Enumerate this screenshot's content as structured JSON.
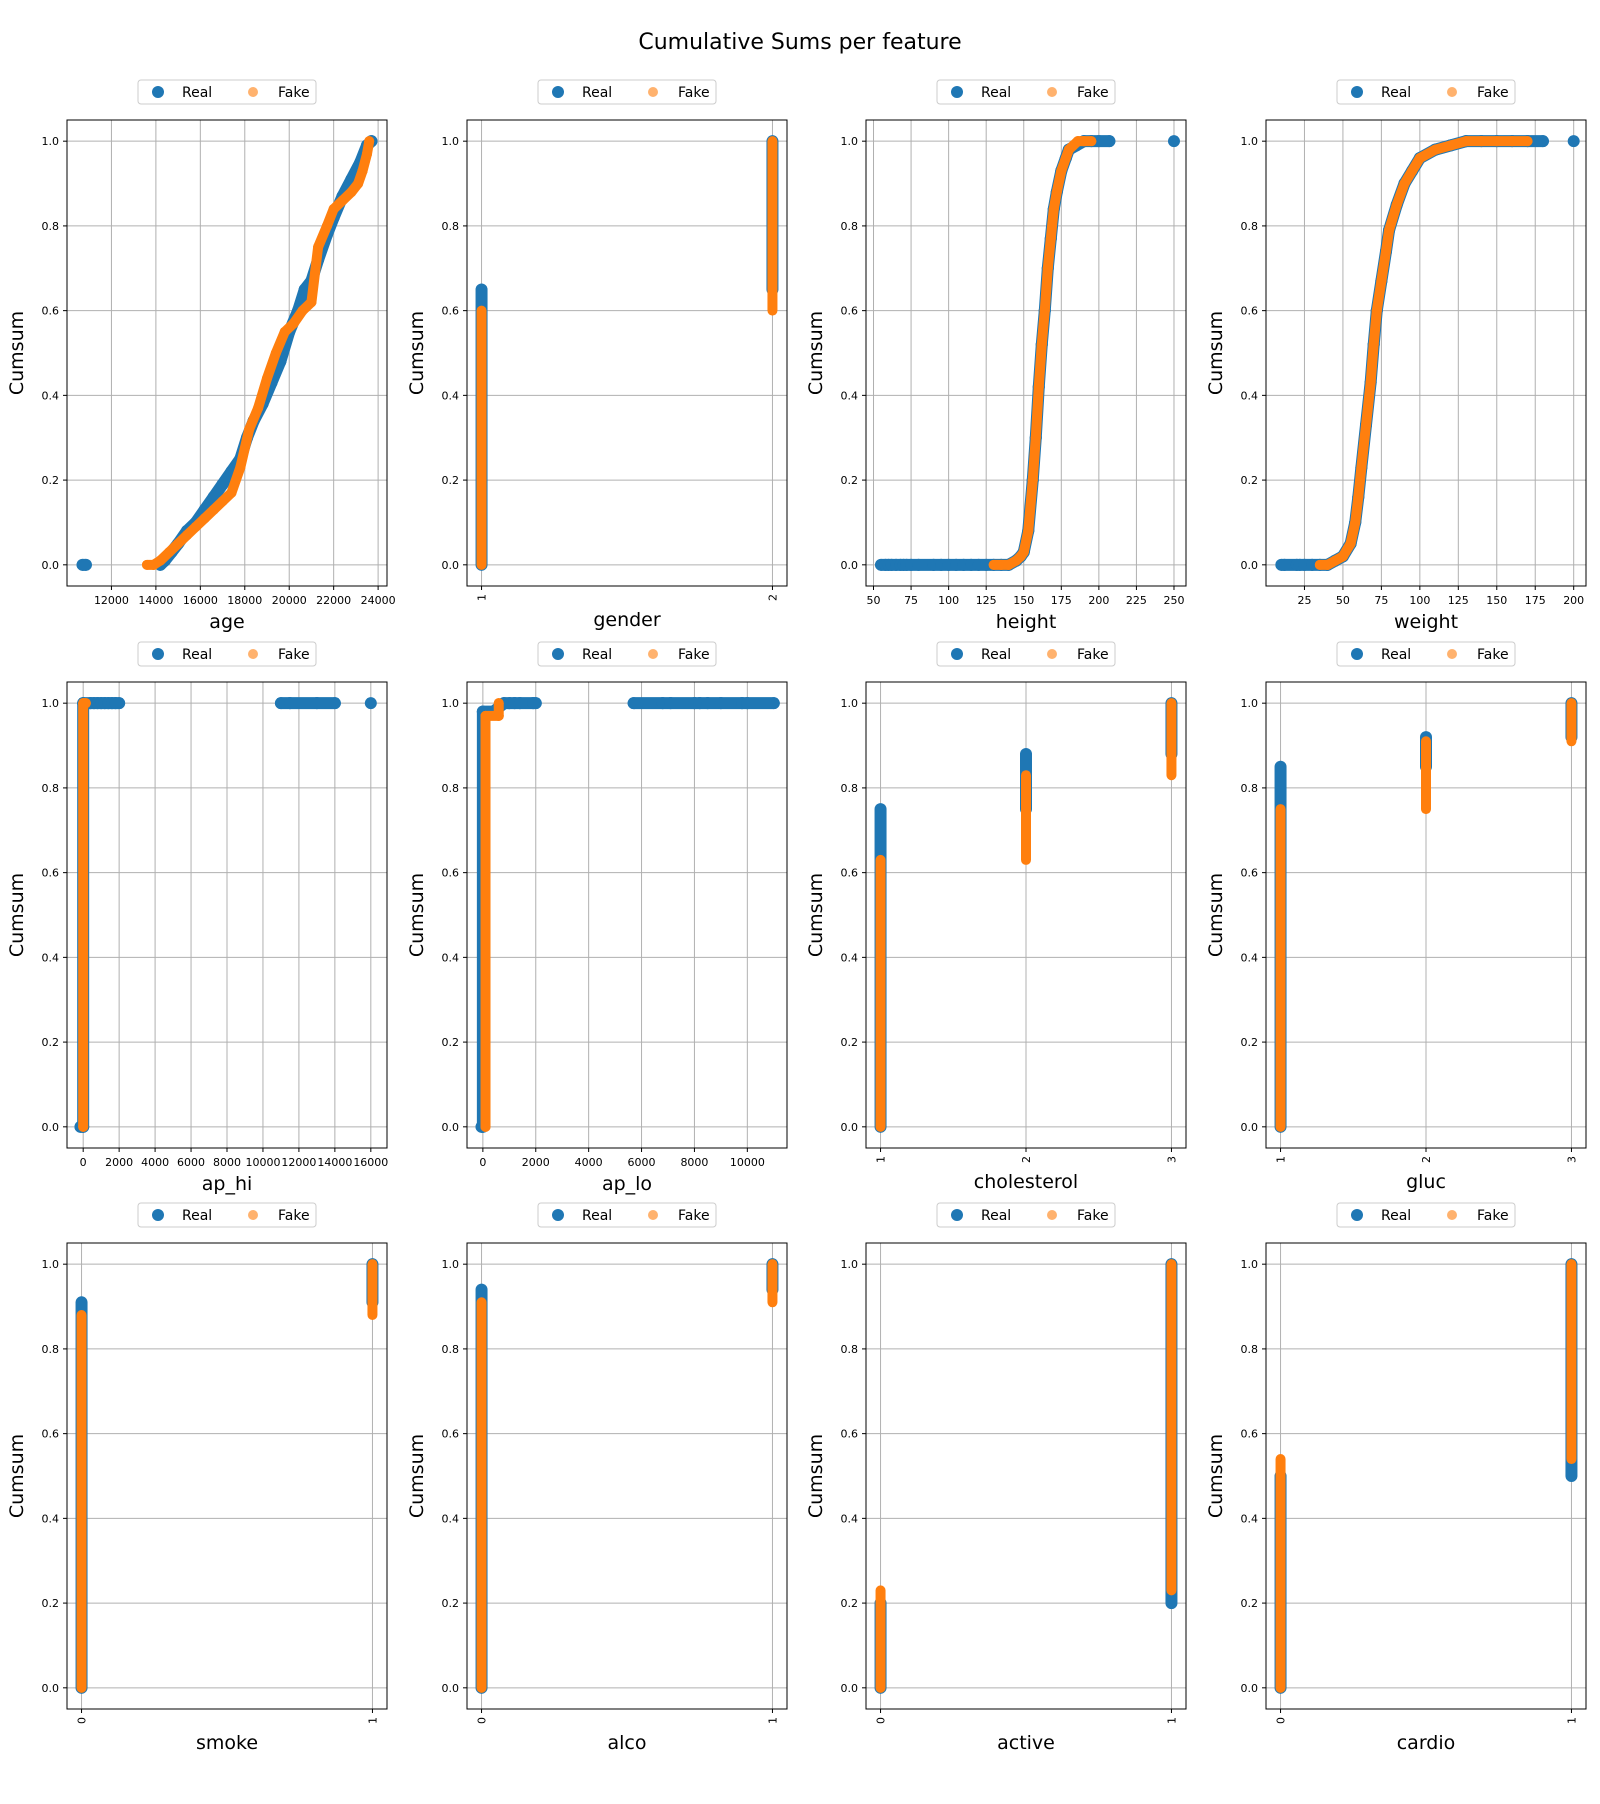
{
  "figure": {
    "title": "Cumulative Sums per feature",
    "legend_labels": [
      "Real",
      "Fake"
    ],
    "colors": {
      "real": "#1f77b4",
      "fake": "#ff7f0e"
    }
  },
  "chart_data": [
    {
      "type": "scatter",
      "xlabel": "age",
      "ylabel": "Cumsum",
      "xlim": [
        10000,
        24400
      ],
      "ylim": [
        -0.05,
        1.05
      ],
      "xticks": [
        "12000",
        "14000",
        "16000",
        "18000",
        "20000",
        "22000",
        "24000"
      ],
      "yticks": [
        "0.0",
        "0.2",
        "0.4",
        "0.6",
        "0.8",
        "1.0"
      ],
      "grid": true,
      "legend": "top-center",
      "series": [
        {
          "name": "Real",
          "x": [
            10700,
            10850,
            14200,
            14400,
            14700,
            15000,
            15400,
            15800,
            16200,
            16600,
            17000,
            17400,
            17800,
            18100,
            18400,
            18800,
            19200,
            19600,
            20000,
            20400,
            20700,
            21000,
            21300,
            21700,
            22000,
            22400,
            22800,
            23200,
            23500,
            23700
          ],
          "y": [
            0,
            0,
            0,
            0.01,
            0.03,
            0.05,
            0.08,
            0.1,
            0.13,
            0.16,
            0.19,
            0.22,
            0.25,
            0.3,
            0.34,
            0.38,
            0.43,
            0.48,
            0.55,
            0.6,
            0.65,
            0.67,
            0.72,
            0.78,
            0.82,
            0.87,
            0.91,
            0.95,
            0.99,
            1.0
          ]
        },
        {
          "name": "Fake",
          "x": [
            13600,
            13900,
            14200,
            14600,
            15000,
            15400,
            15800,
            16200,
            16600,
            17000,
            17400,
            17800,
            18200,
            18600,
            19000,
            19400,
            19800,
            20200,
            20600,
            21000,
            21300,
            21700,
            22000,
            22400,
            22800,
            23100,
            23300,
            23500,
            23600
          ],
          "y": [
            0,
            0,
            0.01,
            0.03,
            0.05,
            0.07,
            0.09,
            0.11,
            0.13,
            0.15,
            0.17,
            0.23,
            0.32,
            0.37,
            0.44,
            0.5,
            0.55,
            0.57,
            0.6,
            0.62,
            0.75,
            0.8,
            0.84,
            0.86,
            0.88,
            0.9,
            0.93,
            0.97,
            1.0
          ]
        }
      ]
    },
    {
      "type": "scatter",
      "xlabel": "gender",
      "ylabel": "Cumsum",
      "xlim": [
        0.95,
        2.05
      ],
      "ylim": [
        -0.05,
        1.05
      ],
      "xticks": [
        "1",
        "2"
      ],
      "xticks_rotated": true,
      "yticks": [
        "0.0",
        "0.2",
        "0.4",
        "0.6",
        "0.8",
        "1.0"
      ],
      "grid": true,
      "legend": "top-center",
      "series": [
        {
          "name": "Real",
          "x": [
            1,
            1
          ],
          "y": [
            0,
            0.65
          ],
          "band": true,
          "x2": [
            2,
            2
          ],
          "y2": [
            0.65,
            1.0
          ]
        },
        {
          "name": "Fake",
          "x": [
            1,
            1
          ],
          "y": [
            0,
            0.6
          ],
          "band": true,
          "x2": [
            2,
            2
          ],
          "y2": [
            0.6,
            1.0
          ]
        }
      ]
    },
    {
      "type": "scatter",
      "xlabel": "height",
      "ylabel": "Cumsum",
      "xlim": [
        45,
        258
      ],
      "ylim": [
        -0.05,
        1.05
      ],
      "xticks": [
        "50",
        "75",
        "100",
        "125",
        "150",
        "175",
        "200",
        "225",
        "250"
      ],
      "yticks": [
        "0.0",
        "0.2",
        "0.4",
        "0.6",
        "0.8",
        "1.0"
      ],
      "grid": true,
      "legend": "top-center",
      "series": [
        {
          "name": "Real",
          "x": [
            55,
            58,
            60,
            62,
            65,
            68,
            70,
            72,
            75,
            80,
            90,
            95,
            100,
            105,
            110,
            115,
            120,
            125,
            130,
            135,
            140,
            145,
            148,
            150,
            153,
            156,
            158,
            160,
            162,
            164,
            166,
            168,
            170,
            172,
            175,
            178,
            180,
            185,
            190,
            195,
            200,
            207,
            250
          ],
          "y": [
            0,
            0,
            0,
            0,
            0,
            0,
            0,
            0,
            0,
            0,
            0,
            0,
            0,
            0,
            0,
            0,
            0,
            0,
            0,
            0,
            0,
            0.01,
            0.02,
            0.03,
            0.08,
            0.2,
            0.3,
            0.42,
            0.52,
            0.6,
            0.7,
            0.77,
            0.84,
            0.88,
            0.93,
            0.96,
            0.98,
            0.99,
            1.0,
            1.0,
            1.0,
            1.0,
            1.0
          ]
        },
        {
          "name": "Fake",
          "x": [
            130,
            135,
            140,
            145,
            148,
            150,
            153,
            156,
            158,
            160,
            162,
            164,
            166,
            168,
            170,
            172,
            175,
            178,
            180,
            183,
            186,
            190,
            195
          ],
          "y": [
            0,
            0,
            0,
            0.01,
            0.02,
            0.03,
            0.08,
            0.2,
            0.3,
            0.42,
            0.52,
            0.6,
            0.7,
            0.77,
            0.84,
            0.88,
            0.93,
            0.96,
            0.98,
            0.99,
            1.0,
            1.0,
            1.0
          ]
        }
      ]
    },
    {
      "type": "scatter",
      "xlabel": "weight",
      "ylabel": "Cumsum",
      "xlim": [
        0,
        208
      ],
      "ylim": [
        -0.05,
        1.05
      ],
      "xticks": [
        "25",
        "50",
        "75",
        "100",
        "125",
        "150",
        "175",
        "200"
      ],
      "yticks": [
        "0.0",
        "0.2",
        "0.4",
        "0.6",
        "0.8",
        "1.0"
      ],
      "grid": true,
      "legend": "top-center",
      "series": [
        {
          "name": "Real",
          "x": [
            10,
            12,
            20,
            22,
            25,
            30,
            35,
            40,
            45,
            50,
            55,
            58,
            60,
            62,
            65,
            68,
            70,
            72,
            75,
            78,
            80,
            85,
            90,
            95,
            100,
            110,
            120,
            130,
            140,
            150,
            160,
            170,
            180,
            200
          ],
          "y": [
            0,
            0,
            0,
            0,
            0,
            0,
            0,
            0,
            0.01,
            0.02,
            0.05,
            0.1,
            0.16,
            0.23,
            0.33,
            0.43,
            0.52,
            0.6,
            0.67,
            0.74,
            0.79,
            0.85,
            0.9,
            0.93,
            0.96,
            0.98,
            0.99,
            1.0,
            1.0,
            1.0,
            1.0,
            1.0,
            1.0,
            1.0
          ]
        },
        {
          "name": "Fake",
          "x": [
            35,
            40,
            45,
            50,
            55,
            58,
            60,
            62,
            65,
            68,
            70,
            72,
            75,
            78,
            80,
            85,
            90,
            95,
            100,
            110,
            120,
            130,
            140,
            150,
            160,
            170
          ],
          "y": [
            0,
            0,
            0.01,
            0.02,
            0.05,
            0.1,
            0.16,
            0.23,
            0.33,
            0.43,
            0.52,
            0.6,
            0.67,
            0.74,
            0.79,
            0.85,
            0.9,
            0.93,
            0.96,
            0.98,
            0.99,
            1.0,
            1.0,
            1.0,
            1.0,
            1.0
          ]
        }
      ]
    },
    {
      "type": "scatter",
      "xlabel": "ap_hi",
      "ylabel": "Cumsum",
      "xlim": [
        -900,
        16900
      ],
      "ylim": [
        -0.05,
        1.05
      ],
      "xticks": [
        "0",
        "2000",
        "4000",
        "6000",
        "8000",
        "10000",
        "12000",
        "14000",
        "16000"
      ],
      "yticks": [
        "0.0",
        "0.2",
        "0.4",
        "0.6",
        "0.8",
        "1.0"
      ],
      "grid": true,
      "legend": "top-center",
      "series": [
        {
          "name": "Real",
          "x": [
            -150,
            0,
            0,
            400,
            600,
            800,
            1000,
            1200,
            1400,
            1600,
            1800,
            2000,
            11000,
            11500,
            13000,
            14000,
            16000
          ],
          "y": [
            0,
            0,
            1.0,
            1.0,
            1.0,
            1.0,
            1.0,
            1.0,
            1.0,
            1.0,
            1.0,
            1.0,
            1.0,
            1.0,
            1.0,
            1.0,
            1.0
          ],
          "band_at": 0
        },
        {
          "name": "Fake",
          "x": [
            0,
            0,
            150
          ],
          "y": [
            0,
            1.0,
            1.0
          ],
          "band_at": 0
        }
      ]
    },
    {
      "type": "scatter",
      "xlabel": "ap_lo",
      "ylabel": "Cumsum",
      "xlim": [
        -600,
        11500
      ],
      "ylim": [
        -0.05,
        1.05
      ],
      "xticks": [
        "0",
        "2000",
        "4000",
        "6000",
        "8000",
        "10000"
      ],
      "yticks": [
        "0.0",
        "0.2",
        "0.4",
        "0.6",
        "0.8",
        "1.0"
      ],
      "grid": true,
      "legend": "top-center",
      "series": [
        {
          "name": "Real",
          "x": [
            -50,
            0,
            0,
            400,
            800,
            1000,
            1200,
            1400,
            1900,
            2000,
            5700,
            6800,
            7100,
            8000,
            8200,
            8500,
            9000,
            9800,
            10000,
            11000
          ],
          "y": [
            0,
            0,
            0.98,
            0.98,
            1.0,
            1.0,
            1.0,
            1.0,
            1.0,
            1.0,
            1.0,
            1.0,
            1.0,
            1.0,
            1.0,
            1.0,
            1.0,
            1.0,
            1.0,
            1.0
          ],
          "band_at": 0
        },
        {
          "name": "Fake",
          "x": [
            100,
            100,
            600,
            600
          ],
          "y": [
            0,
            0.97,
            0.97,
            1.0
          ],
          "band_at": 100
        }
      ]
    },
    {
      "type": "scatter",
      "xlabel": "cholesterol",
      "ylabel": "Cumsum",
      "xlim": [
        0.9,
        3.1
      ],
      "ylim": [
        -0.05,
        1.05
      ],
      "xticks": [
        "1",
        "2",
        "3"
      ],
      "xticks_rotated": true,
      "yticks": [
        "0.0",
        "0.2",
        "0.4",
        "0.6",
        "0.8",
        "1.0"
      ],
      "grid": true,
      "legend": "top-center",
      "series": [
        {
          "name": "Real",
          "bands": [
            {
              "x": 1,
              "y0": 0,
              "y1": 0.75
            },
            {
              "x": 2,
              "y0": 0.75,
              "y1": 0.88
            },
            {
              "x": 3,
              "y0": 0.88,
              "y1": 1.0
            }
          ]
        },
        {
          "name": "Fake",
          "bands": [
            {
              "x": 1,
              "y0": 0,
              "y1": 0.63
            },
            {
              "x": 2,
              "y0": 0.63,
              "y1": 0.83
            },
            {
              "x": 3,
              "y0": 0.83,
              "y1": 1.0
            }
          ]
        }
      ]
    },
    {
      "type": "scatter",
      "xlabel": "gluc",
      "ylabel": "Cumsum",
      "xlim": [
        0.9,
        3.1
      ],
      "ylim": [
        -0.05,
        1.05
      ],
      "xticks": [
        "1",
        "2",
        "3"
      ],
      "xticks_rotated": true,
      "yticks": [
        "0.0",
        "0.2",
        "0.4",
        "0.6",
        "0.8",
        "1.0"
      ],
      "grid": true,
      "legend": "top-center",
      "series": [
        {
          "name": "Real",
          "bands": [
            {
              "x": 1,
              "y0": 0,
              "y1": 0.85
            },
            {
              "x": 2,
              "y0": 0.85,
              "y1": 0.92
            },
            {
              "x": 3,
              "y0": 0.92,
              "y1": 1.0
            }
          ]
        },
        {
          "name": "Fake",
          "bands": [
            {
              "x": 1,
              "y0": 0,
              "y1": 0.75
            },
            {
              "x": 2,
              "y0": 0.75,
              "y1": 0.91
            },
            {
              "x": 3,
              "y0": 0.91,
              "y1": 1.0
            }
          ]
        }
      ]
    },
    {
      "type": "scatter",
      "xlabel": "smoke",
      "ylabel": "Cumsum",
      "xlim": [
        -0.05,
        1.05
      ],
      "ylim": [
        -0.05,
        1.05
      ],
      "xticks": [
        "0",
        "1"
      ],
      "xticks_rotated": true,
      "yticks": [
        "0.0",
        "0.2",
        "0.4",
        "0.6",
        "0.8",
        "1.0"
      ],
      "grid": true,
      "legend": "top-center",
      "series": [
        {
          "name": "Real",
          "bands": [
            {
              "x": 0,
              "y0": 0,
              "y1": 0.91
            },
            {
              "x": 1,
              "y0": 0.91,
              "y1": 1.0
            }
          ]
        },
        {
          "name": "Fake",
          "bands": [
            {
              "x": 0,
              "y0": 0,
              "y1": 0.88
            },
            {
              "x": 1,
              "y0": 0.88,
              "y1": 1.0
            }
          ]
        }
      ]
    },
    {
      "type": "scatter",
      "xlabel": "alco",
      "ylabel": "Cumsum",
      "xlim": [
        -0.05,
        1.05
      ],
      "ylim": [
        -0.05,
        1.05
      ],
      "xticks": [
        "0",
        "1"
      ],
      "xticks_rotated": true,
      "yticks": [
        "0.0",
        "0.2",
        "0.4",
        "0.6",
        "0.8",
        "1.0"
      ],
      "grid": true,
      "legend": "top-center",
      "series": [
        {
          "name": "Real",
          "bands": [
            {
              "x": 0,
              "y0": 0,
              "y1": 0.94
            },
            {
              "x": 1,
              "y0": 0.94,
              "y1": 1.0
            }
          ]
        },
        {
          "name": "Fake",
          "bands": [
            {
              "x": 0,
              "y0": 0,
              "y1": 0.91
            },
            {
              "x": 1,
              "y0": 0.91,
              "y1": 1.0
            }
          ]
        }
      ]
    },
    {
      "type": "scatter",
      "xlabel": "active",
      "ylabel": "Cumsum",
      "xlim": [
        -0.05,
        1.05
      ],
      "ylim": [
        -0.05,
        1.05
      ],
      "xticks": [
        "0",
        "1"
      ],
      "xticks_rotated": true,
      "yticks": [
        "0.0",
        "0.2",
        "0.4",
        "0.6",
        "0.8",
        "1.0"
      ],
      "grid": true,
      "legend": "top-center",
      "series": [
        {
          "name": "Real",
          "bands": [
            {
              "x": 0,
              "y0": 0,
              "y1": 0.2
            },
            {
              "x": 1,
              "y0": 0.2,
              "y1": 1.0
            }
          ]
        },
        {
          "name": "Fake",
          "bands": [
            {
              "x": 0,
              "y0": 0,
              "y1": 0.23
            },
            {
              "x": 1,
              "y0": 0.23,
              "y1": 1.0
            }
          ]
        }
      ]
    },
    {
      "type": "scatter",
      "xlabel": "cardio",
      "ylabel": "Cumsum",
      "xlim": [
        -0.05,
        1.05
      ],
      "ylim": [
        -0.05,
        1.05
      ],
      "xticks": [
        "0",
        "1"
      ],
      "xticks_rotated": true,
      "yticks": [
        "0.0",
        "0.2",
        "0.4",
        "0.6",
        "0.8",
        "1.0"
      ],
      "grid": true,
      "legend": "top-center",
      "series": [
        {
          "name": "Real",
          "bands": [
            {
              "x": 0,
              "y0": 0,
              "y1": 0.5
            },
            {
              "x": 1,
              "y0": 0.5,
              "y1": 1.0
            }
          ]
        },
        {
          "name": "Fake",
          "bands": [
            {
              "x": 0,
              "y0": 0,
              "y1": 0.54
            },
            {
              "x": 1,
              "y0": 0.54,
              "y1": 1.0
            }
          ]
        }
      ]
    }
  ]
}
